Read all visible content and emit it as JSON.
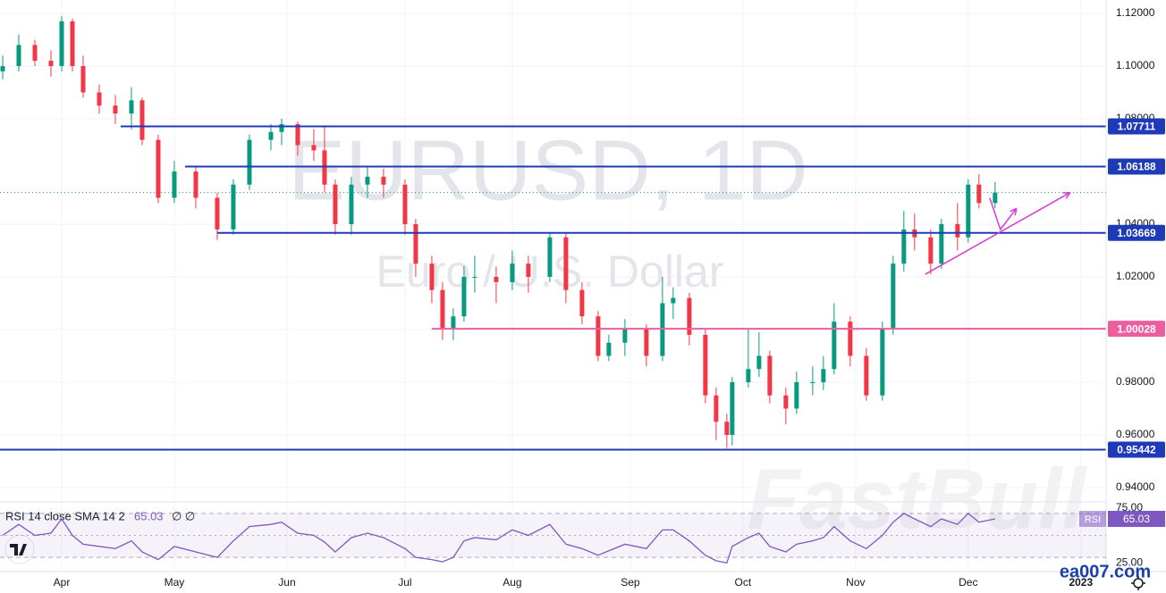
{
  "chart_data": {
    "type": "candlestick",
    "title": "EURUSD, 1D",
    "subtitle": "Euro / U.S. Dollar",
    "watermarks": [
      "FastBull",
      "ea007.com"
    ],
    "up_color": "#089981",
    "down_color": "#f23645",
    "grid": true,
    "xlim": [
      -0.5,
      205.7
    ],
    "xticks": [
      {
        "value": 11,
        "label": "Apr"
      },
      {
        "value": 32,
        "label": "May"
      },
      {
        "value": 53,
        "label": "Jun"
      },
      {
        "value": 75,
        "label": "Jul"
      },
      {
        "value": 95,
        "label": "Aug"
      },
      {
        "value": 117,
        "label": "Sep"
      },
      {
        "value": 138,
        "label": "Oct"
      },
      {
        "value": 159,
        "label": "Nov"
      },
      {
        "value": 180,
        "label": "Dec"
      },
      {
        "value": 201,
        "label": "2023"
      }
    ],
    "ylim": [
      0.93525,
      1.12508
    ],
    "yticks": [
      {
        "value": 1.12,
        "label": "1.12000"
      },
      {
        "value": 1.1,
        "label": "1.10000"
      },
      {
        "value": 1.08,
        "label": "1.08000"
      },
      {
        "value": 1.04,
        "label": "1.04000"
      },
      {
        "value": 1.02,
        "label": "1.02000"
      },
      {
        "value": 1.0,
        "label": "1.00000"
      },
      {
        "value": 0.98,
        "label": "0.98000"
      },
      {
        "value": 0.96,
        "label": "0.96000"
      },
      {
        "value": 0.94,
        "label": "0.94000"
      }
    ],
    "x": [
      0,
      3,
      6,
      9,
      11,
      13,
      15,
      18,
      21,
      24,
      26,
      29,
      32,
      36,
      40,
      43,
      46,
      50,
      52,
      55,
      58,
      60,
      62,
      65,
      68,
      71,
      75,
      77,
      80,
      82,
      84,
      86,
      88,
      92,
      95,
      98,
      102,
      105,
      108,
      111,
      113,
      116,
      120,
      123,
      125,
      128,
      131,
      133,
      135,
      136,
      139,
      141,
      143,
      146,
      148,
      151,
      153,
      155,
      158,
      161,
      164,
      166,
      168,
      170,
      173,
      175,
      178,
      180,
      182,
      185
    ],
    "open": [
      1.098,
      1.1,
      1.108,
      1.102,
      1.1,
      1.117,
      1.1,
      1.09,
      1.085,
      1.082,
      1.087,
      1.072,
      1.05,
      1.06,
      1.05,
      1.038,
      1.055,
      1.072,
      1.075,
      1.078,
      1.07,
      1.068,
      1.055,
      1.04,
      1.055,
      1.058,
      1.055,
      1.04,
      1.025,
      1.015,
      1.0,
      1.005,
      1.02,
      1.02,
      1.018,
      1.025,
      1.02,
      1.035,
      1.015,
      1.005,
      0.99,
      0.995,
      1.0,
      0.99,
      1.01,
      1.012,
      0.998,
      0.975,
      0.965,
      0.96,
      0.98,
      0.985,
      0.99,
      0.975,
      0.97,
      0.98,
      0.98,
      0.985,
      1.003,
      0.99,
      0.975,
      1.0,
      1.025,
      1.038,
      1.035,
      1.025,
      1.04,
      1.035,
      1.055,
      1.048
    ],
    "high": [
      1.104,
      1.112,
      1.11,
      1.106,
      1.119,
      1.118,
      1.104,
      1.093,
      1.089,
      1.092,
      1.088,
      1.074,
      1.064,
      1.062,
      1.052,
      1.057,
      1.074,
      1.078,
      1.08,
      1.079,
      1.076,
      1.077,
      1.057,
      1.058,
      1.062,
      1.061,
      1.057,
      1.042,
      1.028,
      1.018,
      1.008,
      1.024,
      1.028,
      1.024,
      1.03,
      1.028,
      1.037,
      1.037,
      1.018,
      1.007,
      0.998,
      1.004,
      1.002,
      1.02,
      1.016,
      1.014,
      1.0,
      0.978,
      0.968,
      0.982,
      1.0,
      0.999,
      0.992,
      0.978,
      0.984,
      0.986,
      0.99,
      1.01,
      1.005,
      0.993,
      1.003,
      1.028,
      1.045,
      1.044,
      1.038,
      1.042,
      1.048,
      1.057,
      1.059,
      1.056
    ],
    "low": [
      1.095,
      1.098,
      1.1,
      1.096,
      1.098,
      1.098,
      1.088,
      1.082,
      1.078,
      1.076,
      1.07,
      1.048,
      1.048,
      1.046,
      1.034,
      1.036,
      1.053,
      1.068,
      1.07,
      1.066,
      1.064,
      1.052,
      1.036,
      1.036,
      1.05,
      1.05,
      1.036,
      1.02,
      1.01,
      0.996,
      0.996,
      1.003,
      1.014,
      1.01,
      1.015,
      1.014,
      1.018,
      1.01,
      1.002,
      0.988,
      0.988,
      0.99,
      0.986,
      0.988,
      1.004,
      0.994,
      0.972,
      0.958,
      0.955,
      0.956,
      0.978,
      0.982,
      0.972,
      0.964,
      0.968,
      0.975,
      0.977,
      0.983,
      0.986,
      0.973,
      0.973,
      0.998,
      1.022,
      1.03,
      1.021,
      1.023,
      1.03,
      1.033,
      1.046,
      1.046
    ],
    "close": [
      1.1,
      1.108,
      1.102,
      1.1,
      1.117,
      1.1,
      1.09,
      1.085,
      1.082,
      1.087,
      1.072,
      1.05,
      1.06,
      1.05,
      1.038,
      1.055,
      1.072,
      1.075,
      1.078,
      1.07,
      1.068,
      1.055,
      1.04,
      1.055,
      1.058,
      1.055,
      1.04,
      1.025,
      1.015,
      1.0,
      1.005,
      1.02,
      1.02,
      1.018,
      1.025,
      1.02,
      1.035,
      1.015,
      1.005,
      0.99,
      0.995,
      1.0,
      0.99,
      1.01,
      1.012,
      0.998,
      0.975,
      0.965,
      0.96,
      0.98,
      0.985,
      0.99,
      0.975,
      0.97,
      0.98,
      0.98,
      0.985,
      1.003,
      0.99,
      0.975,
      1.0,
      1.025,
      1.038,
      1.035,
      1.025,
      1.04,
      1.035,
      1.055,
      1.048,
      1.052
    ],
    "last_price": 1.052,
    "levels": [
      {
        "value": 1.07711,
        "label": "1.07711",
        "color": "#1e3ab8"
      },
      {
        "value": 1.06188,
        "label": "1.06188",
        "color": "#1e3ab8"
      },
      {
        "value": 1.03669,
        "label": "1.03669",
        "color": "#1e3ab8"
      },
      {
        "value": 1.00028,
        "label": "1.00028",
        "color": "#ec5f9f"
      },
      {
        "value": 0.95442,
        "label": "0.95442",
        "color": "#1e3ab8"
      }
    ],
    "level_starts": [
      22,
      34,
      40,
      80,
      -0.5
    ],
    "trend_lines": [
      {
        "x": [
          172,
          199
        ],
        "y": [
          1.021,
          1.052
        ],
        "color": "#d63ad6"
      },
      {
        "x": [
          184,
          186,
          189
        ],
        "y": [
          1.05,
          1.038,
          1.046
        ],
        "color": "#d63ad6"
      }
    ],
    "rsi": {
      "label": "RSI 14 close SMA 14 2",
      "value_label": "65.03",
      "extra": "∅ ∅",
      "badge": "RSI",
      "color": "#7e57c2",
      "ylim": [
        22,
        78
      ],
      "bands": [
        70,
        50,
        30
      ],
      "yticks": [
        {
          "value": 75,
          "label": "75.00"
        },
        {
          "value": 25,
          "label": "25.00"
        }
      ],
      "values": [
        50,
        60,
        50,
        52,
        65,
        50,
        42,
        40,
        38,
        45,
        35,
        28,
        40,
        35,
        30,
        45,
        58,
        60,
        62,
        52,
        50,
        44,
        35,
        48,
        52,
        48,
        38,
        30,
        28,
        26,
        30,
        45,
        48,
        46,
        55,
        50,
        60,
        42,
        38,
        32,
        36,
        42,
        38,
        55,
        55,
        45,
        32,
        27,
        25,
        40,
        48,
        52,
        40,
        35,
        42,
        45,
        48,
        58,
        45,
        38,
        50,
        62,
        70,
        65,
        58,
        65,
        60,
        70,
        62,
        65.03
      ]
    }
  }
}
